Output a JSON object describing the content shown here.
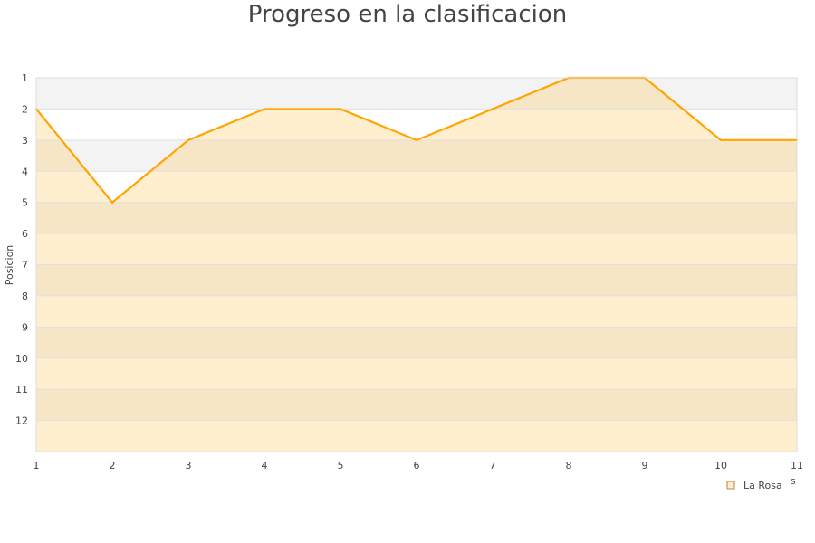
{
  "chart_data": {
    "type": "area",
    "title": "Progreso en la clasificacion",
    "xlabel": "s",
    "ylabel": "Posicion",
    "x": [
      1,
      2,
      3,
      4,
      5,
      6,
      7,
      8,
      9,
      10,
      11
    ],
    "y_ticks": [
      1,
      2,
      3,
      4,
      5,
      6,
      7,
      8,
      9,
      10,
      11,
      12
    ],
    "ylim": [
      1,
      13
    ],
    "y_inverted": true,
    "xlim": [
      1,
      11
    ],
    "grid": true,
    "legend_placement": "bottom-right",
    "series": [
      {
        "name": "La Rosa",
        "values": [
          2,
          5,
          3,
          2,
          2,
          3,
          2,
          1,
          1,
          3,
          3
        ],
        "color": "#ffa500",
        "fill": "#ffedcc"
      }
    ],
    "colors": {
      "band_alt": "#f3f3f3",
      "grid": "#e0e0e0",
      "axis": "#dddddd"
    }
  }
}
